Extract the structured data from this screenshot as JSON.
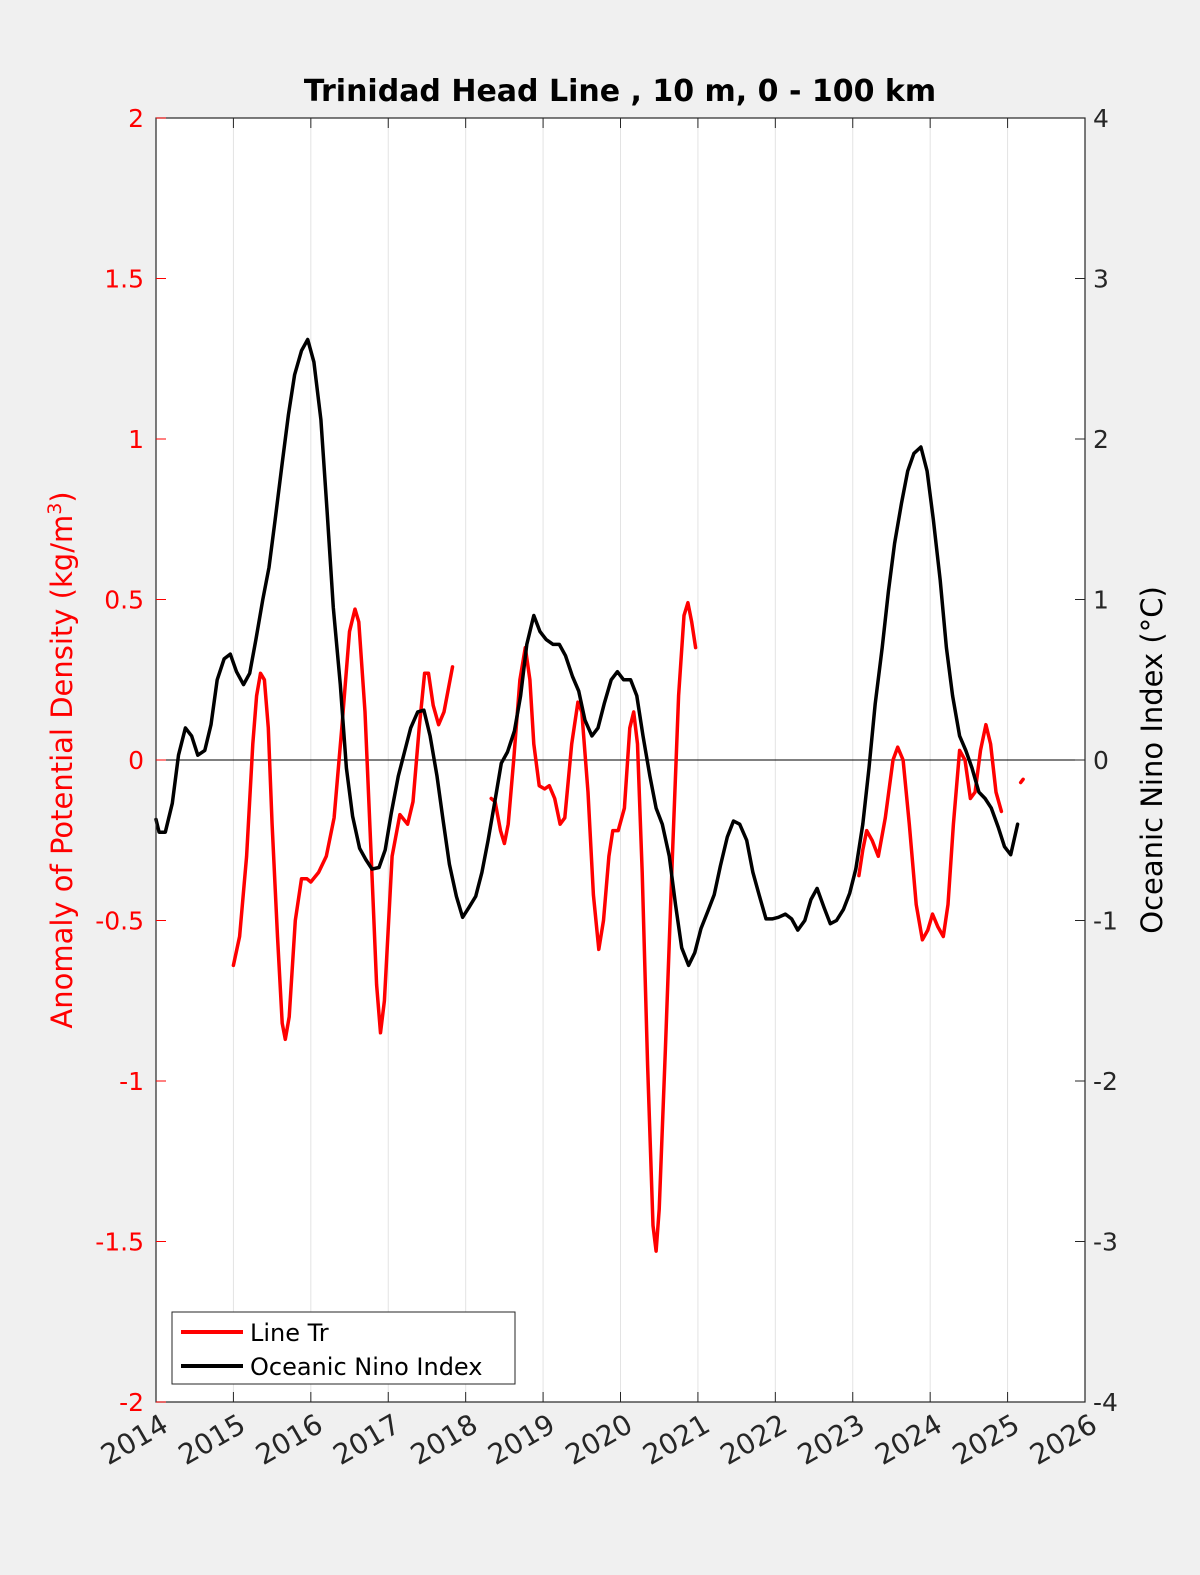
{
  "chart_data": {
    "type": "line",
    "title": "Trinidad Head Line , 10 m, 0 - 100 km",
    "ylabel_left_main": "Anomaly of Potential Density (kg/m",
    "ylabel_left_sup": "3",
    "ylabel_left_close": ")",
    "ylabel_right": "Oceanic Nino Index (°C)",
    "xlim": [
      2014,
      2026
    ],
    "ylim_left": [
      -2,
      2
    ],
    "ylim_right": [
      -4,
      4
    ],
    "x_ticks": [
      "2014",
      "2015",
      "2016",
      "2017",
      "2018",
      "2019",
      "2020",
      "2021",
      "2022",
      "2023",
      "2024",
      "2025",
      "2026"
    ],
    "y_left_ticks": [
      "2",
      "1.5",
      "1",
      "0.5",
      "0",
      "-0.5",
      "-1",
      "-1.5",
      "-2"
    ],
    "y_right_ticks": [
      "4",
      "3",
      "2",
      "1",
      "0",
      "-1",
      "-2",
      "-3",
      "-4"
    ],
    "colors": {
      "line_tr": "#ff0000",
      "oni": "#000000",
      "left_axis": "#ff0000"
    },
    "legend": {
      "position": "bottom-left",
      "entries": [
        "Line Tr",
        "Oceanic Nino Index"
      ]
    },
    "grid": "vertical",
    "series": [
      {
        "name": "Line Tr",
        "axis": "left",
        "color": "#ff0000",
        "segments": [
          [
            [
              2015.0,
              -0.64
            ],
            [
              2015.08,
              -0.55
            ],
            [
              2015.17,
              -0.3
            ],
            [
              2015.25,
              0.05
            ],
            [
              2015.3,
              0.2
            ],
            [
              2015.35,
              0.27
            ],
            [
              2015.4,
              0.25
            ],
            [
              2015.45,
              0.1
            ],
            [
              2015.5,
              -0.2
            ],
            [
              2015.57,
              -0.55
            ],
            [
              2015.63,
              -0.82
            ],
            [
              2015.67,
              -0.87
            ],
            [
              2015.72,
              -0.8
            ],
            [
              2015.8,
              -0.5
            ],
            [
              2015.88,
              -0.37
            ],
            [
              2015.95,
              -0.37
            ],
            [
              2016.0,
              -0.38
            ],
            [
              2016.1,
              -0.35
            ],
            [
              2016.2,
              -0.3
            ],
            [
              2016.3,
              -0.18
            ],
            [
              2016.4,
              0.1
            ],
            [
              2016.5,
              0.4
            ],
            [
              2016.57,
              0.47
            ],
            [
              2016.62,
              0.43
            ],
            [
              2016.7,
              0.15
            ],
            [
              2016.78,
              -0.3
            ],
            [
              2016.85,
              -0.7
            ],
            [
              2016.9,
              -0.85
            ],
            [
              2016.95,
              -0.75
            ],
            [
              2017.05,
              -0.3
            ],
            [
              2017.15,
              -0.17
            ],
            [
              2017.25,
              -0.2
            ],
            [
              2017.32,
              -0.13
            ],
            [
              2017.4,
              0.1
            ],
            [
              2017.47,
              0.27
            ],
            [
              2017.52,
              0.27
            ],
            [
              2017.58,
              0.17
            ],
            [
              2017.65,
              0.11
            ],
            [
              2017.72,
              0.15
            ],
            [
              2017.83,
              0.29
            ]
          ],
          [
            [
              2018.33,
              -0.12
            ],
            [
              2018.38,
              -0.13
            ],
            [
              2018.45,
              -0.22
            ],
            [
              2018.5,
              -0.26
            ],
            [
              2018.55,
              -0.2
            ],
            [
              2018.62,
              0.0
            ],
            [
              2018.7,
              0.25
            ],
            [
              2018.77,
              0.35
            ],
            [
              2018.83,
              0.25
            ],
            [
              2018.88,
              0.05
            ],
            [
              2018.95,
              -0.08
            ],
            [
              2019.02,
              -0.09
            ],
            [
              2019.08,
              -0.08
            ],
            [
              2019.15,
              -0.12
            ],
            [
              2019.22,
              -0.2
            ],
            [
              2019.28,
              -0.18
            ],
            [
              2019.37,
              0.05
            ],
            [
              2019.45,
              0.18
            ],
            [
              2019.5,
              0.15
            ],
            [
              2019.58,
              -0.1
            ],
            [
              2019.65,
              -0.42
            ],
            [
              2019.72,
              -0.59
            ],
            [
              2019.78,
              -0.5
            ],
            [
              2019.85,
              -0.3
            ],
            [
              2019.9,
              -0.22
            ],
            [
              2019.97,
              -0.22
            ],
            [
              2020.05,
              -0.15
            ],
            [
              2020.12,
              0.1
            ],
            [
              2020.17,
              0.15
            ],
            [
              2020.22,
              0.05
            ],
            [
              2020.28,
              -0.35
            ],
            [
              2020.35,
              -0.95
            ],
            [
              2020.42,
              -1.45
            ],
            [
              2020.46,
              -1.53
            ],
            [
              2020.5,
              -1.4
            ],
            [
              2020.58,
              -0.9
            ],
            [
              2020.67,
              -0.3
            ],
            [
              2020.75,
              0.2
            ],
            [
              2020.82,
              0.45
            ],
            [
              2020.87,
              0.49
            ],
            [
              2020.92,
              0.43
            ],
            [
              2020.97,
              0.35
            ]
          ],
          [
            [
              2023.08,
              -0.36
            ],
            [
              2023.13,
              -0.28
            ],
            [
              2023.18,
              -0.22
            ],
            [
              2023.25,
              -0.25
            ],
            [
              2023.33,
              -0.3
            ],
            [
              2023.42,
              -0.18
            ],
            [
              2023.52,
              0.0
            ],
            [
              2023.58,
              0.04
            ],
            [
              2023.65,
              0.0
            ],
            [
              2023.73,
              -0.2
            ],
            [
              2023.82,
              -0.45
            ],
            [
              2023.9,
              -0.56
            ],
            [
              2023.97,
              -0.53
            ],
            [
              2024.03,
              -0.48
            ],
            [
              2024.1,
              -0.52
            ],
            [
              2024.17,
              -0.55
            ],
            [
              2024.23,
              -0.45
            ],
            [
              2024.3,
              -0.2
            ],
            [
              2024.38,
              0.03
            ],
            [
              2024.45,
              0.0
            ],
            [
              2024.52,
              -0.12
            ],
            [
              2024.58,
              -0.1
            ],
            [
              2024.65,
              0.03
            ],
            [
              2024.72,
              0.11
            ],
            [
              2024.78,
              0.05
            ],
            [
              2024.85,
              -0.1
            ],
            [
              2024.92,
              -0.16
            ]
          ],
          [
            [
              2025.17,
              -0.07
            ],
            [
              2025.2,
              -0.06
            ]
          ]
        ]
      },
      {
        "name": "Oceanic Nino Index",
        "axis": "right",
        "color": "#000000",
        "segments": [
          [
            [
              2014.0,
              -0.37
            ],
            [
              2014.04,
              -0.45
            ],
            [
              2014.12,
              -0.45
            ],
            [
              2014.21,
              -0.27
            ],
            [
              2014.29,
              0.03
            ],
            [
              2014.38,
              0.2
            ],
            [
              2014.46,
              0.15
            ],
            [
              2014.54,
              0.03
            ],
            [
              2014.63,
              0.06
            ],
            [
              2014.71,
              0.22
            ],
            [
              2014.79,
              0.5
            ],
            [
              2014.88,
              0.63
            ],
            [
              2014.96,
              0.66
            ],
            [
              2015.04,
              0.55
            ],
            [
              2015.13,
              0.47
            ],
            [
              2015.21,
              0.54
            ],
            [
              2015.29,
              0.75
            ],
            [
              2015.38,
              1.0
            ],
            [
              2015.46,
              1.2
            ],
            [
              2015.54,
              1.5
            ],
            [
              2015.63,
              1.85
            ],
            [
              2015.71,
              2.15
            ],
            [
              2015.79,
              2.4
            ],
            [
              2015.88,
              2.55
            ],
            [
              2015.96,
              2.62
            ],
            [
              2016.04,
              2.48
            ],
            [
              2016.13,
              2.12
            ],
            [
              2016.21,
              1.55
            ],
            [
              2016.29,
              0.95
            ],
            [
              2016.38,
              0.47
            ],
            [
              2016.46,
              -0.05
            ],
            [
              2016.54,
              -0.35
            ],
            [
              2016.63,
              -0.55
            ],
            [
              2016.71,
              -0.62
            ],
            [
              2016.79,
              -0.68
            ],
            [
              2016.88,
              -0.67
            ],
            [
              2016.96,
              -0.56
            ],
            [
              2017.04,
              -0.33
            ],
            [
              2017.13,
              -0.1
            ],
            [
              2017.21,
              0.05
            ],
            [
              2017.29,
              0.2
            ],
            [
              2017.38,
              0.3
            ],
            [
              2017.46,
              0.31
            ],
            [
              2017.54,
              0.15
            ],
            [
              2017.63,
              -0.1
            ],
            [
              2017.71,
              -0.38
            ],
            [
              2017.79,
              -0.65
            ],
            [
              2017.88,
              -0.85
            ],
            [
              2017.96,
              -0.98
            ],
            [
              2018.04,
              -0.92
            ],
            [
              2018.13,
              -0.85
            ],
            [
              2018.21,
              -0.7
            ],
            [
              2018.29,
              -0.5
            ],
            [
              2018.38,
              -0.25
            ],
            [
              2018.46,
              -0.02
            ],
            [
              2018.54,
              0.05
            ],
            [
              2018.63,
              0.18
            ],
            [
              2018.71,
              0.4
            ],
            [
              2018.79,
              0.72
            ],
            [
              2018.88,
              0.9
            ],
            [
              2018.96,
              0.8
            ],
            [
              2019.04,
              0.75
            ],
            [
              2019.13,
              0.72
            ],
            [
              2019.21,
              0.72
            ],
            [
              2019.29,
              0.65
            ],
            [
              2019.38,
              0.52
            ],
            [
              2019.46,
              0.43
            ],
            [
              2019.54,
              0.25
            ],
            [
              2019.63,
              0.15
            ],
            [
              2019.71,
              0.2
            ],
            [
              2019.79,
              0.35
            ],
            [
              2019.88,
              0.5
            ],
            [
              2019.96,
              0.55
            ],
            [
              2020.04,
              0.5
            ],
            [
              2020.13,
              0.5
            ],
            [
              2020.21,
              0.4
            ],
            [
              2020.29,
              0.15
            ],
            [
              2020.38,
              -0.1
            ],
            [
              2020.46,
              -0.3
            ],
            [
              2020.54,
              -0.4
            ],
            [
              2020.63,
              -0.6
            ],
            [
              2020.71,
              -0.9
            ],
            [
              2020.79,
              -1.17
            ],
            [
              2020.88,
              -1.28
            ],
            [
              2020.96,
              -1.2
            ],
            [
              2021.04,
              -1.05
            ],
            [
              2021.13,
              -0.94
            ],
            [
              2021.21,
              -0.84
            ],
            [
              2021.29,
              -0.66
            ],
            [
              2021.38,
              -0.48
            ],
            [
              2021.46,
              -0.38
            ],
            [
              2021.54,
              -0.4
            ],
            [
              2021.63,
              -0.5
            ],
            [
              2021.71,
              -0.7
            ],
            [
              2021.79,
              -0.84
            ],
            [
              2021.88,
              -0.99
            ],
            [
              2021.96,
              -0.99
            ],
            [
              2022.04,
              -0.98
            ],
            [
              2022.13,
              -0.96
            ],
            [
              2022.21,
              -0.99
            ],
            [
              2022.29,
              -1.06
            ],
            [
              2022.38,
              -1.0
            ],
            [
              2022.46,
              -0.87
            ],
            [
              2022.54,
              -0.8
            ],
            [
              2022.63,
              -0.92
            ],
            [
              2022.71,
              -1.02
            ],
            [
              2022.79,
              -1.0
            ],
            [
              2022.88,
              -0.93
            ],
            [
              2022.96,
              -0.83
            ],
            [
              2023.04,
              -0.68
            ],
            [
              2023.13,
              -0.4
            ],
            [
              2023.21,
              -0.05
            ],
            [
              2023.29,
              0.35
            ],
            [
              2023.38,
              0.7
            ],
            [
              2023.46,
              1.05
            ],
            [
              2023.54,
              1.35
            ],
            [
              2023.63,
              1.6
            ],
            [
              2023.71,
              1.8
            ],
            [
              2023.79,
              1.91
            ],
            [
              2023.88,
              1.95
            ],
            [
              2023.96,
              1.8
            ],
            [
              2024.04,
              1.5
            ],
            [
              2024.13,
              1.12
            ],
            [
              2024.21,
              0.7
            ],
            [
              2024.29,
              0.4
            ],
            [
              2024.38,
              0.15
            ],
            [
              2024.46,
              0.06
            ],
            [
              2024.54,
              -0.05
            ],
            [
              2024.63,
              -0.2
            ],
            [
              2024.71,
              -0.24
            ],
            [
              2024.79,
              -0.3
            ],
            [
              2024.88,
              -0.42
            ],
            [
              2024.96,
              -0.54
            ],
            [
              2025.04,
              -0.59
            ],
            [
              2025.13,
              -0.4
            ]
          ]
        ]
      }
    ]
  }
}
